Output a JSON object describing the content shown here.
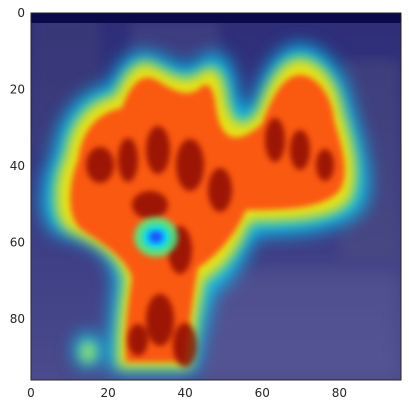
{
  "image": {
    "description_kind": "crowd-density heatmap overlay on a surveillance photo",
    "colormap": "jet",
    "colormap_stops": [
      "#00007f",
      "#0000ff",
      "#00ffff",
      "#ffff00",
      "#ff0000",
      "#7f0000"
    ],
    "background_tint": "#2a2a6e"
  },
  "chart_data": {
    "type": "heatmap",
    "title": "",
    "xlabel": "",
    "ylabel": "",
    "xlim": [
      0,
      96
    ],
    "ylim": [
      96,
      0
    ],
    "x_ticks": [
      0,
      20,
      40,
      60,
      80
    ],
    "y_ticks": [
      0,
      20,
      40,
      60,
      80
    ],
    "x_tick_labels": [
      "0",
      "20",
      "40",
      "60",
      "80"
    ],
    "y_tick_labels": [
      "0",
      "20",
      "40",
      "60",
      "80"
    ],
    "grid": false,
    "legend": "none"
  }
}
